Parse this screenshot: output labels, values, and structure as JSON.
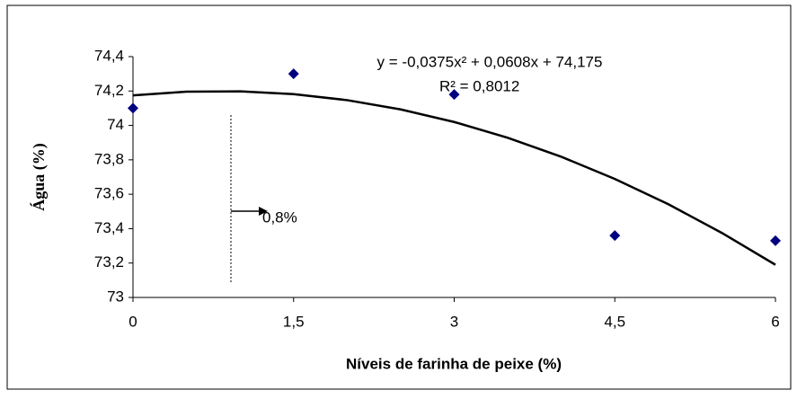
{
  "chart_data": {
    "type": "scatter",
    "x_label": "Níveis de farinha de peixe (%)",
    "y_label": "Água (%)",
    "series": [
      {
        "color": "#000080",
        "x": [
          0,
          1.5,
          3,
          4.5,
          6
        ],
        "values": [
          74.1,
          74.3,
          74.18,
          73.36,
          73.33
        ]
      }
    ],
    "trendline": {
      "color": "#000000",
      "x": [
        0,
        0.5,
        1,
        1.5,
        2,
        2.5,
        3,
        3.5,
        4,
        4.5,
        5,
        5.5,
        6
      ],
      "values": [
        74.175,
        74.196,
        74.198,
        74.182,
        74.147,
        74.093,
        74.02,
        73.928,
        73.818,
        73.689,
        73.542,
        73.375,
        73.19
      ]
    },
    "equation": "y = -0,0375x² + 0,0608x + 74,175",
    "r_squared": "R² = 0,8012",
    "annotation": "0,8%",
    "xlim": [
      0,
      6
    ],
    "xticks": [
      0,
      {
        "value": 1.5,
        "label": "1,5"
      },
      3,
      {
        "value": 4.5,
        "label": "4,5"
      },
      6
    ],
    "ylim": [
      73,
      74.4
    ],
    "yticks": [
      73,
      {
        "value": 73.2,
        "label": "73,2"
      },
      {
        "value": 73.4,
        "label": "73,4"
      },
      {
        "value": 73.6,
        "label": "73,6"
      },
      {
        "value": 73.8,
        "label": "73,8"
      },
      74,
      {
        "value": 74.2,
        "label": "74,2"
      },
      {
        "value": 74.4,
        "label": "74,4"
      }
    ]
  }
}
